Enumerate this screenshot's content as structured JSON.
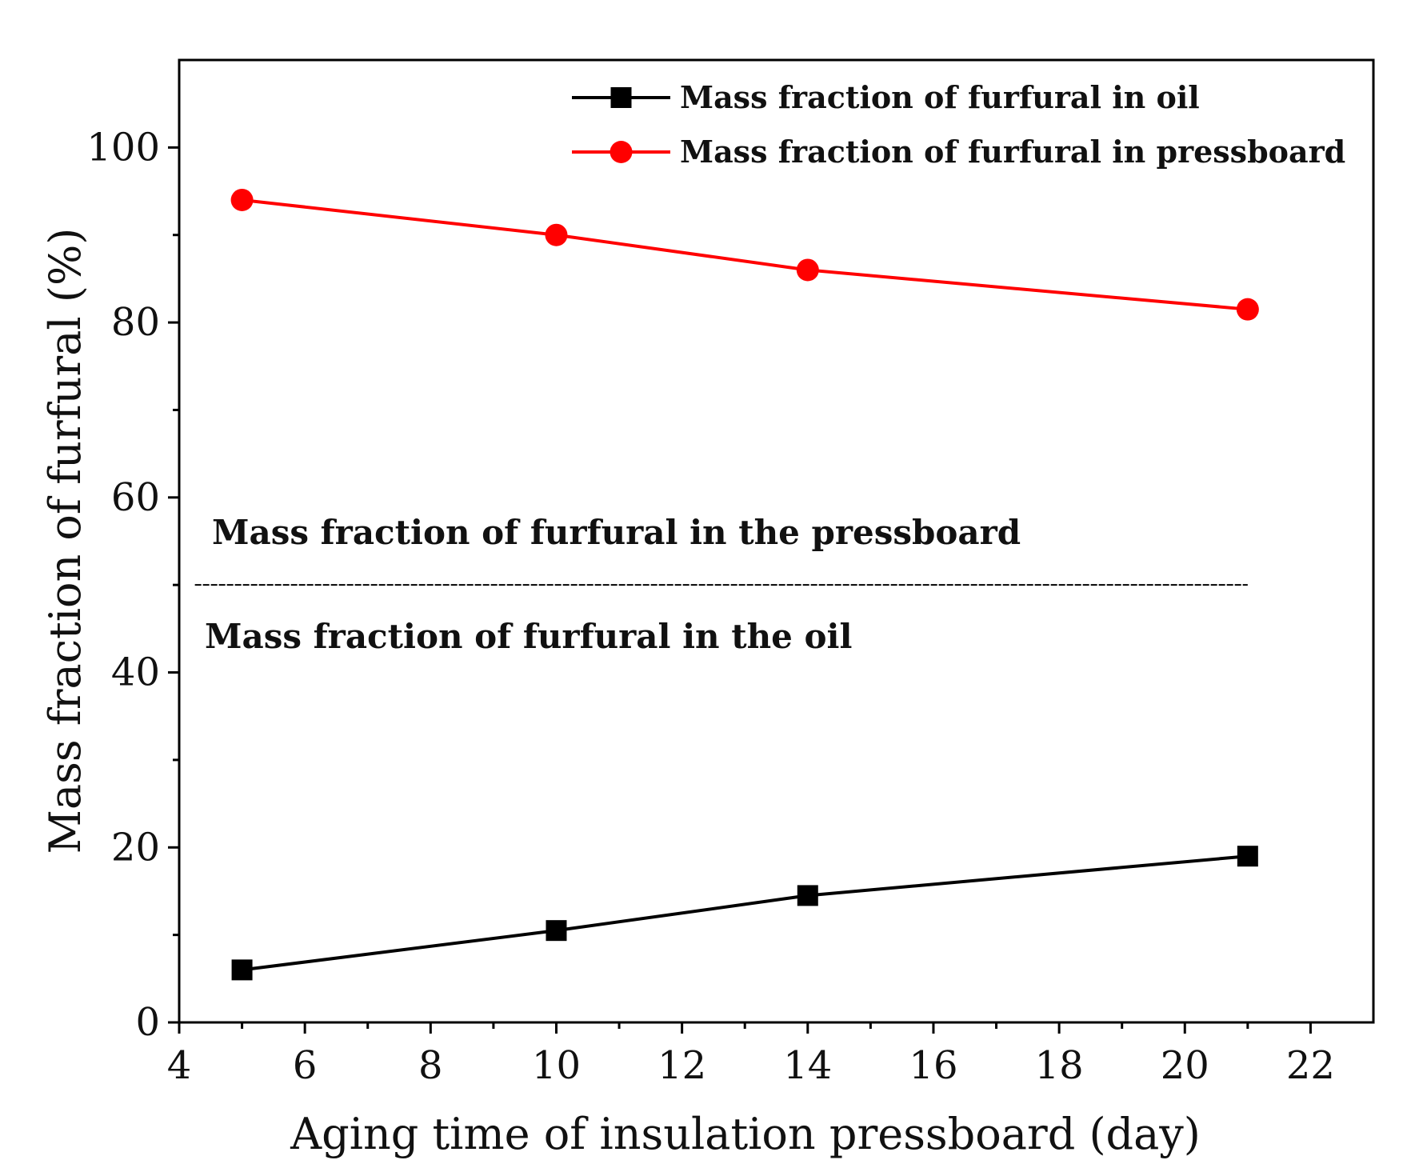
{
  "chart_data": {
    "type": "line",
    "xlabel": "Aging time of insulation pressboard (day)",
    "ylabel": "Mass fraction of furfural (%)",
    "xlim": [
      4,
      23
    ],
    "ylim": [
      0,
      110
    ],
    "x_ticks": [
      4,
      6,
      8,
      10,
      12,
      14,
      16,
      18,
      20,
      22
    ],
    "x_tick_labels": [
      "4",
      "6",
      "8",
      "10",
      "12",
      "14",
      "16",
      "18",
      "20",
      "22"
    ],
    "y_ticks": [
      0,
      20,
      40,
      60,
      80,
      100
    ],
    "y_tick_labels": [
      "0",
      "20",
      "40",
      "60",
      "80",
      "100"
    ],
    "y_minor_ticks": [
      10,
      30,
      50,
      70,
      90
    ],
    "x": [
      5,
      10,
      14,
      21
    ],
    "series": [
      {
        "name": "Mass fraction of furfural in oil",
        "values": [
          6,
          10.5,
          14.5,
          19
        ],
        "color": "#000000",
        "marker": "square"
      },
      {
        "name": "Mass fraction of furfural in pressboard",
        "values": [
          94,
          90,
          86,
          81.5
        ],
        "color": "#ff0000",
        "marker": "circle"
      }
    ],
    "reference_line": {
      "y": 50,
      "style": "dashed",
      "color": "#000000",
      "x_range": [
        4.25,
        21
      ]
    },
    "annotations": [
      {
        "text": "Mass fraction of furfural in the pressboard",
        "position": "above-reference-line"
      },
      {
        "text": "Mass fraction of furfural in the oil",
        "position": "below-reference-line"
      }
    ],
    "legend": {
      "position": "top-right"
    },
    "grid": false
  }
}
